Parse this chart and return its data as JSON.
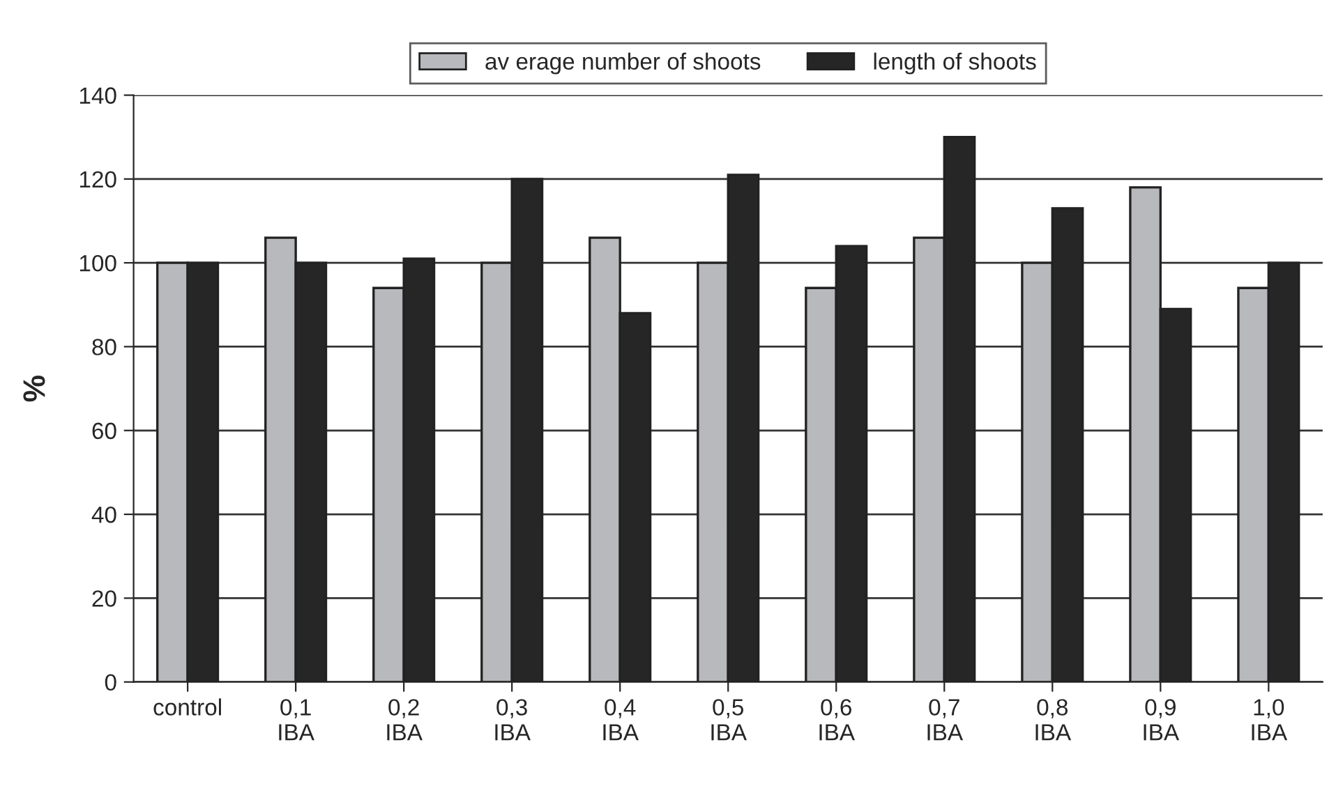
{
  "chart_data": {
    "type": "bar",
    "ylabel": "%",
    "categories": [
      "control",
      "0,1\nIBA",
      "0,2\nIBA",
      "0,3\nIBA",
      "0,4\nIBA",
      "0,5\nIBA",
      "0,6\nIBA",
      "0,7\nIBA",
      "0,8\nIBA",
      "0,9\nIBA",
      "1,0\nIBA"
    ],
    "series": [
      {
        "name": "av erage number of shoots",
        "color": "#b8b9bd",
        "values": [
          100,
          106,
          94,
          100,
          106,
          100,
          94,
          106,
          100,
          118,
          94
        ]
      },
      {
        "name": "length of shoots",
        "color": "#262626",
        "values": [
          100,
          100,
          101,
          120,
          88,
          121,
          104,
          130,
          113,
          89,
          100
        ]
      }
    ],
    "ylim": [
      0,
      140
    ],
    "yticks": [
      0,
      20,
      40,
      60,
      80,
      100,
      120,
      140
    ],
    "grid": "y",
    "legend": "top"
  }
}
